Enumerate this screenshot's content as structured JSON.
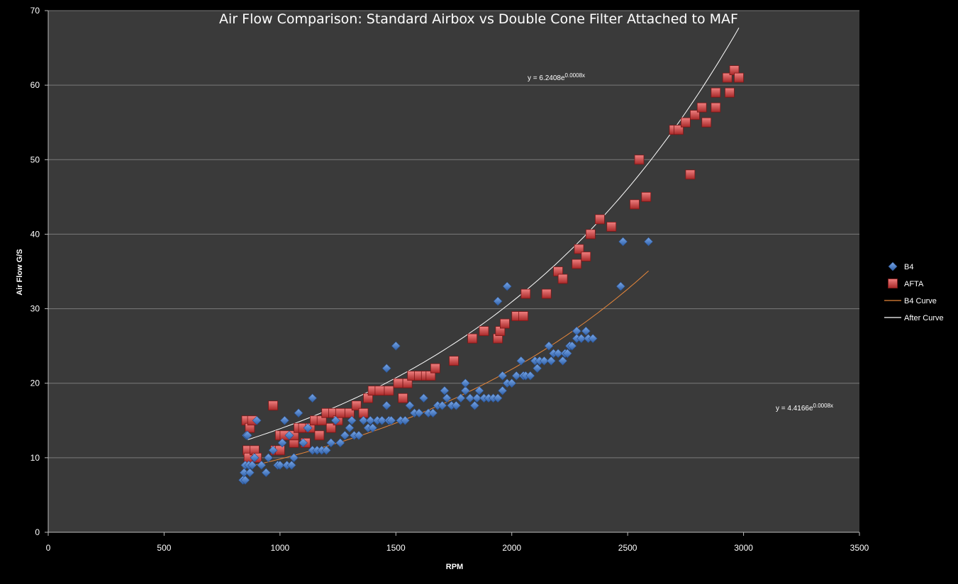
{
  "chart_data": {
    "type": "scatter",
    "title": "Air Flow Comparison: Standard Airbox vs Double Cone Filter Attached to MAF",
    "xlabel": "RPM",
    "ylabel": "Air Flow G/S",
    "xlim": [
      0,
      3500
    ],
    "ylim": [
      0,
      70
    ],
    "x_ticks": [
      "0",
      "500",
      "1000",
      "1500",
      "2000",
      "2500",
      "3000",
      "3500"
    ],
    "y_ticks": [
      "0",
      "10",
      "20",
      "30",
      "40",
      "50",
      "60",
      "70"
    ],
    "grid": "horizontal",
    "legend_position": "right",
    "colors": {
      "b4": "#4a7fc8",
      "afta": "#d24646",
      "b4_curve": "#e8873a",
      "after_curve": "#ffffff",
      "plot_bg": "#3a3a3a"
    },
    "series": [
      {
        "name": "B4",
        "marker": "diamond",
        "points": [
          [
            840,
            7
          ],
          [
            850,
            7
          ],
          [
            845,
            8
          ],
          [
            850,
            9
          ],
          [
            855,
            13
          ],
          [
            860,
            13
          ],
          [
            865,
            9
          ],
          [
            870,
            8
          ],
          [
            880,
            9
          ],
          [
            890,
            10
          ],
          [
            900,
            15
          ],
          [
            920,
            9
          ],
          [
            940,
            8
          ],
          [
            950,
            10
          ],
          [
            970,
            11
          ],
          [
            990,
            9
          ],
          [
            1000,
            9
          ],
          [
            1010,
            12
          ],
          [
            1020,
            15
          ],
          [
            1030,
            9
          ],
          [
            1040,
            13
          ],
          [
            1050,
            9
          ],
          [
            1060,
            10
          ],
          [
            1080,
            16
          ],
          [
            1100,
            12
          ],
          [
            1120,
            14
          ],
          [
            1140,
            18
          ],
          [
            1140,
            11
          ],
          [
            1160,
            11
          ],
          [
            1180,
            11
          ],
          [
            1200,
            11
          ],
          [
            1220,
            12
          ],
          [
            1240,
            15
          ],
          [
            1260,
            12
          ],
          [
            1280,
            13
          ],
          [
            1300,
            14
          ],
          [
            1310,
            15
          ],
          [
            1320,
            13
          ],
          [
            1340,
            13
          ],
          [
            1360,
            15
          ],
          [
            1380,
            14
          ],
          [
            1390,
            15
          ],
          [
            1400,
            14
          ],
          [
            1420,
            15
          ],
          [
            1440,
            15
          ],
          [
            1460,
            17
          ],
          [
            1460,
            22
          ],
          [
            1470,
            15
          ],
          [
            1480,
            15
          ],
          [
            1500,
            25
          ],
          [
            1520,
            15
          ],
          [
            1540,
            15
          ],
          [
            1560,
            17
          ],
          [
            1580,
            16
          ],
          [
            1600,
            16
          ],
          [
            1620,
            18
          ],
          [
            1640,
            16
          ],
          [
            1660,
            16
          ],
          [
            1680,
            17
          ],
          [
            1700,
            17
          ],
          [
            1710,
            19
          ],
          [
            1720,
            18
          ],
          [
            1740,
            17
          ],
          [
            1760,
            17
          ],
          [
            1780,
            18
          ],
          [
            1800,
            19
          ],
          [
            1800,
            20
          ],
          [
            1820,
            18
          ],
          [
            1840,
            17
          ],
          [
            1850,
            18
          ],
          [
            1860,
            19
          ],
          [
            1880,
            18
          ],
          [
            1900,
            18
          ],
          [
            1920,
            18
          ],
          [
            1940,
            31
          ],
          [
            1940,
            18
          ],
          [
            1960,
            19
          ],
          [
            1960,
            21
          ],
          [
            1980,
            20
          ],
          [
            1980,
            33
          ],
          [
            2000,
            20
          ],
          [
            2020,
            21
          ],
          [
            2040,
            23
          ],
          [
            2050,
            21
          ],
          [
            2060,
            21
          ],
          [
            2080,
            21
          ],
          [
            2100,
            23
          ],
          [
            2110,
            22
          ],
          [
            2120,
            23
          ],
          [
            2140,
            23
          ],
          [
            2160,
            25
          ],
          [
            2170,
            23
          ],
          [
            2180,
            24
          ],
          [
            2200,
            24
          ],
          [
            2220,
            23
          ],
          [
            2230,
            24
          ],
          [
            2240,
            24
          ],
          [
            2250,
            25
          ],
          [
            2260,
            25
          ],
          [
            2280,
            27
          ],
          [
            2280,
            26
          ],
          [
            2300,
            26
          ],
          [
            2320,
            27
          ],
          [
            2330,
            26
          ],
          [
            2350,
            26
          ],
          [
            2470,
            33
          ],
          [
            2480,
            39
          ],
          [
            2590,
            39
          ]
        ]
      },
      {
        "name": "AFTA",
        "marker": "square",
        "points": [
          [
            855,
            15
          ],
          [
            860,
            11
          ],
          [
            865,
            10
          ],
          [
            870,
            14
          ],
          [
            880,
            15
          ],
          [
            890,
            11
          ],
          [
            900,
            10
          ],
          [
            970,
            17
          ],
          [
            980,
            11
          ],
          [
            1000,
            11
          ],
          [
            1000,
            13
          ],
          [
            1020,
            13
          ],
          [
            1060,
            12
          ],
          [
            1060,
            13
          ],
          [
            1080,
            14
          ],
          [
            1100,
            14
          ],
          [
            1110,
            12
          ],
          [
            1130,
            14
          ],
          [
            1150,
            15
          ],
          [
            1170,
            13
          ],
          [
            1180,
            15
          ],
          [
            1200,
            16
          ],
          [
            1220,
            14
          ],
          [
            1230,
            16
          ],
          [
            1250,
            15
          ],
          [
            1260,
            16
          ],
          [
            1300,
            16
          ],
          [
            1330,
            17
          ],
          [
            1360,
            16
          ],
          [
            1380,
            18
          ],
          [
            1400,
            19
          ],
          [
            1430,
            19
          ],
          [
            1470,
            19
          ],
          [
            1510,
            20
          ],
          [
            1530,
            18
          ],
          [
            1550,
            20
          ],
          [
            1570,
            21
          ],
          [
            1600,
            21
          ],
          [
            1630,
            21
          ],
          [
            1650,
            21
          ],
          [
            1670,
            22
          ],
          [
            1750,
            23
          ],
          [
            1830,
            26
          ],
          [
            1880,
            27
          ],
          [
            1940,
            26
          ],
          [
            1950,
            27
          ],
          [
            1970,
            28
          ],
          [
            2020,
            29
          ],
          [
            2050,
            29
          ],
          [
            2060,
            32
          ],
          [
            2150,
            32
          ],
          [
            2200,
            35
          ],
          [
            2220,
            34
          ],
          [
            2280,
            36
          ],
          [
            2290,
            38
          ],
          [
            2320,
            37
          ],
          [
            2340,
            40
          ],
          [
            2380,
            42
          ],
          [
            2430,
            41
          ],
          [
            2530,
            44
          ],
          [
            2550,
            50
          ],
          [
            2580,
            45
          ],
          [
            2700,
            54
          ],
          [
            2720,
            54
          ],
          [
            2750,
            55
          ],
          [
            2770,
            48
          ],
          [
            2790,
            56
          ],
          [
            2820,
            57
          ],
          [
            2840,
            55
          ],
          [
            2880,
            57
          ],
          [
            2880,
            59
          ],
          [
            2930,
            61
          ],
          [
            2940,
            59
          ],
          [
            2960,
            62
          ],
          [
            2980,
            61
          ]
        ]
      }
    ],
    "trendlines": [
      {
        "name": "B4 Curve",
        "type": "exponential",
        "a": 4.4166,
        "b": 0.0008,
        "x_range": [
          840,
          2590
        ],
        "equation": "y = 4.4166e",
        "exponent": "0.0008x"
      },
      {
        "name": "After Curve",
        "type": "exponential",
        "a": 6.2408,
        "b": 0.0008,
        "x_range": [
          860,
          2980
        ],
        "equation": "y = 6.2408e",
        "exponent": "0.0008x"
      }
    ]
  }
}
